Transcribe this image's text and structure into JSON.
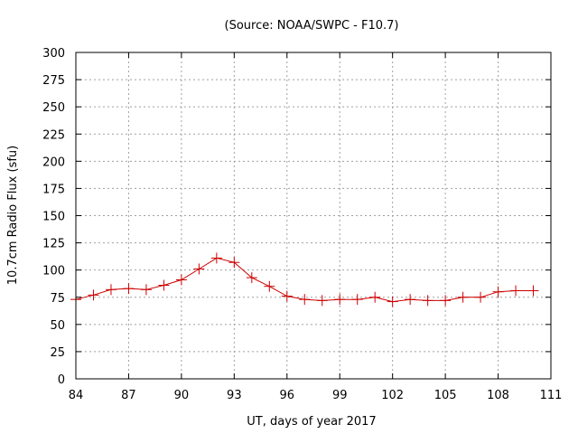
{
  "chart_data": {
    "type": "line",
    "title": "(Source: NOAA/SWPC - F10.7)",
    "xlabel": "UT, days of year 2017",
    "ylabel": "10.7cm Radio Flux (sfu)",
    "xlim": [
      84,
      111
    ],
    "ylim": [
      0,
      300
    ],
    "xticks": [
      84,
      87,
      90,
      93,
      96,
      99,
      102,
      105,
      108,
      111
    ],
    "yticks": [
      0,
      25,
      50,
      75,
      100,
      125,
      150,
      175,
      200,
      225,
      250,
      275,
      300
    ],
    "grid": true,
    "series": [
      {
        "name": "F10.7",
        "color": "#cc0000",
        "marker": "plus",
        "x": [
          84,
          85,
          86,
          87,
          88,
          89,
          90,
          91,
          92,
          93,
          94,
          95,
          96,
          97,
          98,
          99,
          100,
          101,
          102,
          103,
          104,
          105,
          106,
          107,
          108,
          109,
          110
        ],
        "y": [
          73,
          77,
          82,
          83,
          82,
          86,
          91,
          101,
          111,
          107,
          93,
          85,
          76,
          73,
          72,
          73,
          73,
          75,
          71,
          73,
          72,
          72,
          75,
          75,
          80,
          81,
          81
        ]
      }
    ]
  }
}
